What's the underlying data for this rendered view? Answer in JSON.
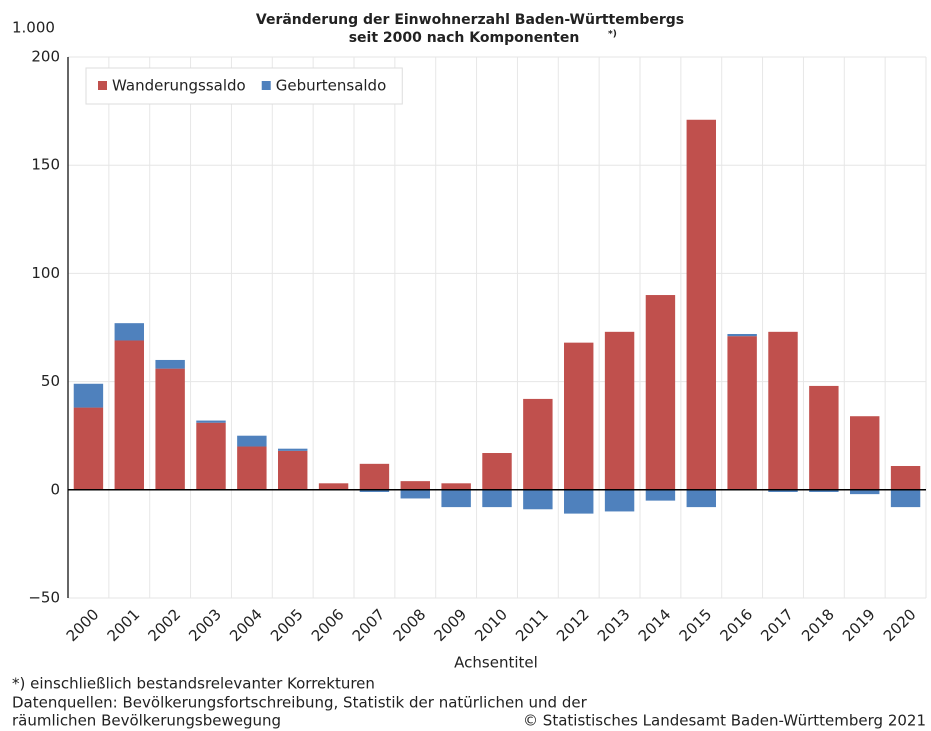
{
  "chart_data": {
    "type": "stacked_bar",
    "title": [
      "Veränderung der Einwohnerzahl Baden-Württembergs",
      "seit 2000 nach Komponenten"
    ],
    "title_note": "*)",
    "y_unit": "1.000",
    "x_label": "Achsentitel",
    "categories": [
      "2000",
      "2001",
      "2002",
      "2003",
      "2004",
      "2005",
      "2006",
      "2007",
      "2008",
      "2009",
      "2010",
      "2011",
      "2012",
      "2013",
      "2014",
      "2015",
      "2016",
      "2017",
      "2018",
      "2019",
      "2020"
    ],
    "series": [
      {
        "name": "Wanderungssaldo",
        "color": "#c0504d",
        "values": [
          38,
          69,
          56,
          31,
          20,
          18,
          3,
          12,
          4,
          3,
          17,
          42,
          68,
          73,
          90,
          171,
          71,
          73,
          48,
          34,
          11
        ]
      },
      {
        "name": "Geburtensaldo",
        "color": "#4f81bd",
        "values": [
          11,
          8,
          4,
          1,
          5,
          1,
          0,
          -1,
          -4,
          -8,
          -8,
          -9,
          -11,
          -10,
          -5,
          -8,
          1,
          -1,
          -1,
          -2,
          -8
        ]
      }
    ],
    "ylim": [
      -50,
      200
    ],
    "yticks": [
      {
        "value": -50,
        "label": "−50"
      },
      0,
      50,
      100,
      150,
      200
    ],
    "grid": true,
    "legend": "top-left",
    "footnotes": [
      "*) einschließlich bestandsrelevanter Korrekturen",
      "Datenquellen: Bevölkerungsfortschreibung, Statistik der natürlichen und der",
      "räumlichen Bevölkerungsbewegung"
    ],
    "copyright": "© Statistisches Landesamt Baden-Württemberg 2021"
  }
}
